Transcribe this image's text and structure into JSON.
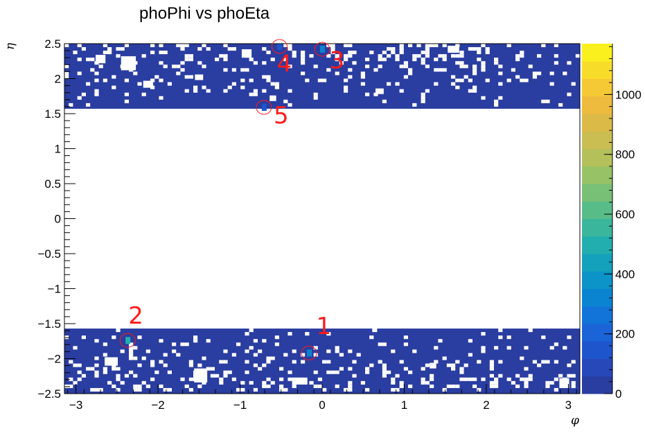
{
  "chart_data": {
    "type": "heatmap",
    "title": "phoPhi vs phoEta",
    "xlabel": "φ",
    "ylabel": "η",
    "xlim": [
      -3.14,
      3.14
    ],
    "ylim": [
      -2.5,
      2.5
    ],
    "x_ticks": [
      -3,
      -2,
      -1,
      0,
      1,
      2,
      3
    ],
    "x_tick_labels": [
      "−3",
      "−2",
      "−1",
      "0",
      "1",
      "2",
      "3"
    ],
    "y_ticks": [
      2.5,
      2,
      1.5,
      1,
      0.5,
      0,
      -0.5,
      -1,
      -1.5,
      -2,
      -2.5
    ],
    "y_tick_labels": [
      "2.5",
      "2",
      "1.5",
      "1",
      "0.5",
      "0",
      "−0.5",
      "−1",
      "−1.5",
      "−2",
      "−2.5"
    ],
    "z_range": [
      0,
      1170
    ],
    "z_ticks": [
      0,
      200,
      400,
      600,
      800,
      1000
    ],
    "z_tick_labels": [
      "0",
      "200",
      "400",
      "600",
      "800",
      "1000"
    ],
    "colors": {
      "palette": [
        "#2a3da0",
        "#2648b8",
        "#1f55cc",
        "#1a64d8",
        "#1274d8",
        "#0a84d0",
        "#0c93c8",
        "#14a1bc",
        "#22aeae",
        "#3ab69c",
        "#58bc88",
        "#78c076",
        "#98c266",
        "#b4c05a",
        "#cabd52",
        "#dcba48",
        "#eebb3e",
        "#f5c836",
        "#f8dc2a",
        "#f9f01e"
      ],
      "background_fill": "#2a3da0",
      "annotation": "#ff1a1a"
    },
    "filled_regions": [
      {
        "eta_range": [
          1.57,
          2.5
        ],
        "phi_range": [
          -3.14,
          3.14
        ],
        "level": 25
      },
      {
        "eta_range": [
          -2.5,
          -1.57
        ],
        "phi_range": [
          -3.14,
          3.14
        ],
        "level": 25
      }
    ],
    "hot_spots": [
      {
        "label": "1",
        "phi": -0.16,
        "eta": -1.92,
        "value": 300
      },
      {
        "label": "2",
        "phi": -2.37,
        "eta": -1.74,
        "value": 500
      },
      {
        "label": "3",
        "phi": 0.0,
        "eta": 2.42,
        "value": 300
      },
      {
        "label": "4",
        "phi": -0.52,
        "eta": 2.46,
        "value": 150
      },
      {
        "label": "5",
        "phi": -0.71,
        "eta": 1.59,
        "value": 150
      }
    ],
    "annotations": [
      {
        "text": "1",
        "phi": 0.02,
        "eta": -1.65
      },
      {
        "text": "2",
        "phi": -2.27,
        "eta": -1.5
      },
      {
        "text": "3",
        "phi": 0.18,
        "eta": 2.15
      },
      {
        "text": "4",
        "phi": -0.46,
        "eta": 2.1
      },
      {
        "text": "5",
        "phi": -0.5,
        "eta": 1.36
      }
    ]
  }
}
